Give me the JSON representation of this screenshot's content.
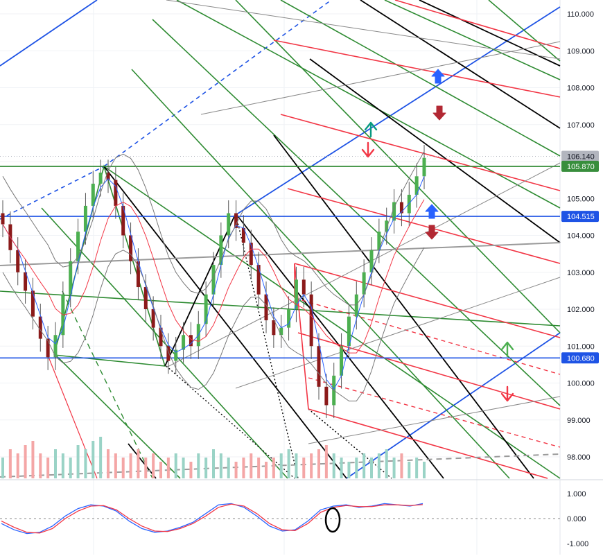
{
  "chart_data": [
    {
      "type": "candlestick",
      "y_axis_ticks": [
        "110.000",
        "109.000",
        "108.000",
        "107.000",
        "106.000",
        "105.000",
        "104.000",
        "103.000",
        "102.000",
        "101.000",
        "100.000",
        "99.000",
        "98.000"
      ],
      "ylim": [
        97.5,
        110.3
      ],
      "price_tags": [
        {
          "label": "106.140",
          "value": 106.14,
          "color": "#b2b5be",
          "text_color": "#131722"
        },
        {
          "label": "105.870",
          "value": 105.87,
          "color": "#388e3c",
          "text_color": "#ffffff"
        },
        {
          "label": "104.515",
          "value": 104.515,
          "color": "#1e53e5",
          "text_color": "#ffffff"
        },
        {
          "label": "100.680",
          "value": 100.68,
          "color": "#1e53e5",
          "text_color": "#ffffff"
        }
      ],
      "horizontal_levels": [
        {
          "value": 105.87,
          "color": "#388e3c"
        },
        {
          "value": 104.515,
          "color": "#1e53e5"
        },
        {
          "value": 100.68,
          "color": "#1e53e5"
        }
      ],
      "close_series": [
        104.3,
        103.6,
        103.0,
        102.5,
        101.8,
        101.2,
        100.7,
        101.3,
        102.4,
        103.3,
        104.1,
        104.8,
        105.4,
        105.7,
        105.5,
        104.8,
        104.0,
        103.3,
        102.6,
        102.0,
        101.5,
        101.0,
        100.6,
        100.9,
        101.3,
        101.0,
        101.6,
        102.4,
        103.2,
        104.0,
        104.6,
        104.2,
        103.8,
        103.2,
        102.4,
        101.7,
        101.3,
        101.5,
        102.0,
        102.8,
        102.4,
        101.0,
        99.9,
        99.4,
        100.2,
        101.0,
        101.8,
        102.4,
        103.0,
        103.6,
        104.1,
        104.4,
        104.9,
        104.6,
        105.1,
        105.6,
        106.1
      ],
      "volume_series": [
        0.5,
        0.7,
        0.6,
        0.8,
        0.9,
        0.6,
        0.5,
        0.7,
        0.6,
        0.5,
        0.8,
        0.7,
        0.9,
        1.0,
        0.7,
        0.6,
        0.5,
        0.6,
        0.7,
        0.5,
        0.6,
        0.4,
        0.5,
        0.6,
        0.5,
        0.4,
        0.6,
        0.5,
        0.7,
        0.6,
        0.5,
        0.4,
        0.5,
        0.6,
        0.5,
        0.4,
        0.5,
        0.6,
        0.7,
        0.6,
        0.5,
        0.6,
        0.7,
        0.8,
        0.6,
        0.5,
        0.4,
        0.5,
        0.6,
        0.5,
        0.6,
        0.7,
        0.5,
        0.6,
        0.4,
        0.5,
        0.4
      ],
      "annotations": [
        {
          "kind": "arrow-up",
          "color": "#089981"
        },
        {
          "kind": "arrow-down",
          "color": "#f23645"
        },
        {
          "kind": "arrow-up-block",
          "color": "#2962ff"
        },
        {
          "kind": "arrow-down-block",
          "color": "#b22833"
        },
        {
          "kind": "arrow-up-block",
          "color": "#2962ff"
        },
        {
          "kind": "arrow-down-block",
          "color": "#b22833"
        },
        {
          "kind": "arrow-up",
          "color": "#4caf50"
        },
        {
          "kind": "arrow-down",
          "color": "#f23645"
        }
      ]
    },
    {
      "type": "line",
      "panel": "oscillator",
      "y_axis_ticks": [
        "1.000",
        "0.000",
        "-1.000"
      ],
      "ylim": [
        -1.1,
        1.1
      ],
      "zero_line": "dashed",
      "series": [
        {
          "color": "#2962ff",
          "values": [
            -0.2,
            -0.45,
            -0.6,
            -0.55,
            -0.3,
            0.1,
            0.4,
            0.55,
            0.5,
            0.3,
            -0.1,
            -0.4,
            -0.55,
            -0.5,
            -0.35,
            -0.15,
            0.2,
            0.55,
            0.6,
            0.45,
            0.1,
            -0.3,
            -0.5,
            -0.45,
            -0.1,
            0.35,
            0.5,
            0.55,
            0.45,
            0.5,
            0.6,
            0.55,
            0.5,
            0.6
          ]
        },
        {
          "color": "#f23645",
          "values": [
            -0.1,
            -0.35,
            -0.55,
            -0.58,
            -0.4,
            0.0,
            0.3,
            0.5,
            0.52,
            0.35,
            0.0,
            -0.3,
            -0.5,
            -0.52,
            -0.4,
            -0.2,
            0.1,
            0.45,
            0.58,
            0.5,
            0.2,
            -0.2,
            -0.45,
            -0.48,
            -0.2,
            0.25,
            0.45,
            0.52,
            0.48,
            0.48,
            0.55,
            0.55,
            0.52,
            0.56
          ]
        }
      ]
    }
  ]
}
